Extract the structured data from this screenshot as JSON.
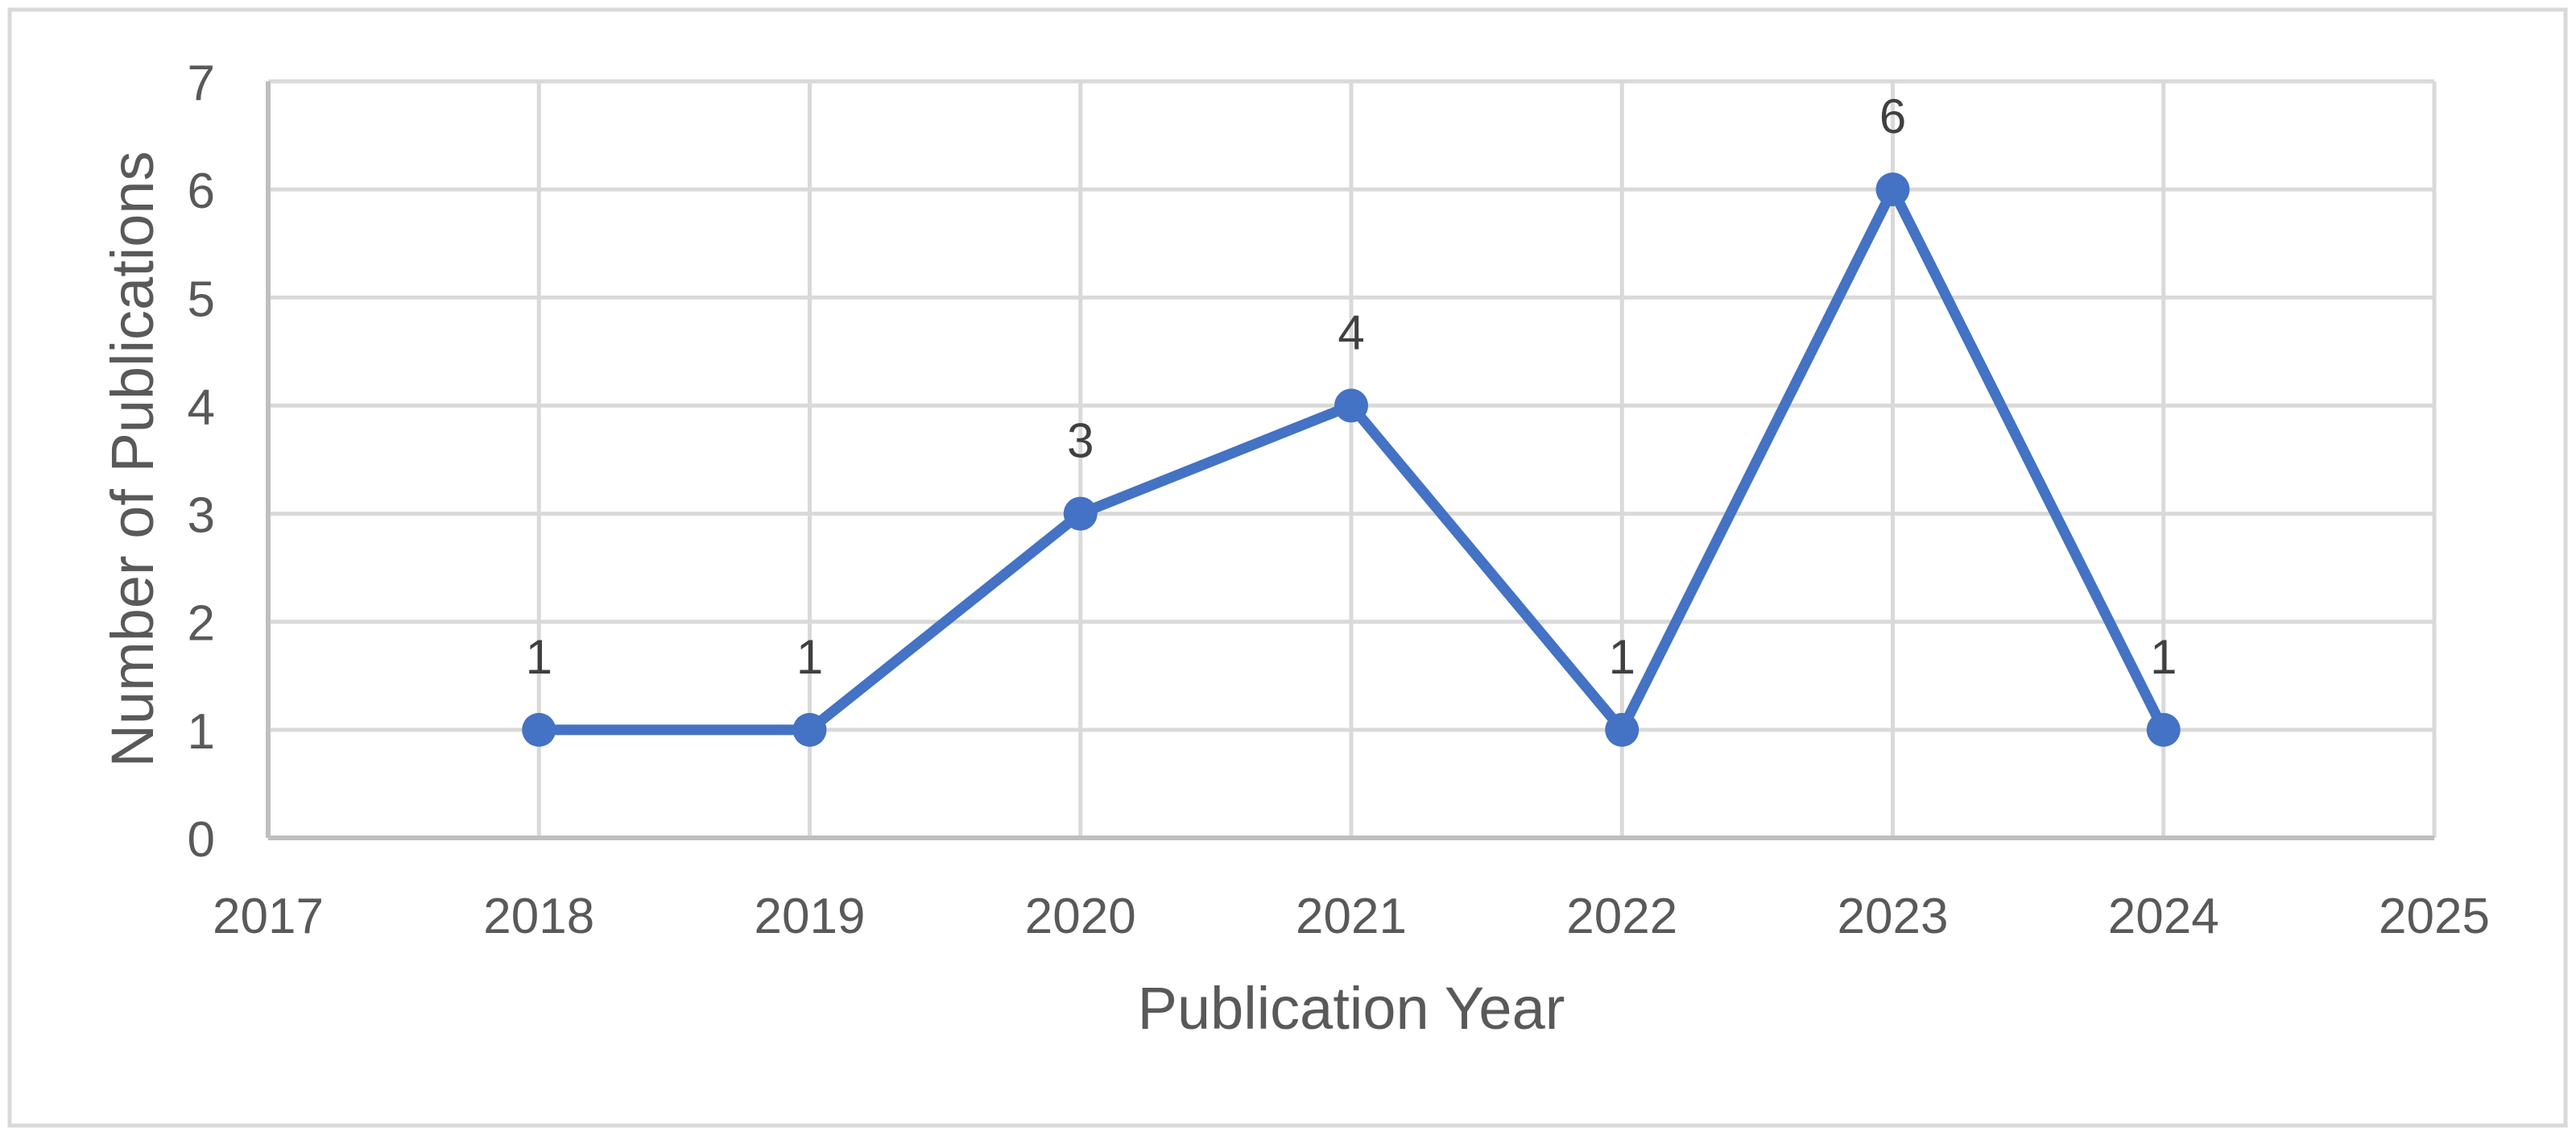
{
  "figure": {
    "background": "#FFFFFF",
    "border_color": "#D9D9D9"
  },
  "chart_data": {
    "type": "line",
    "title": "",
    "xlabel": "Publication Year",
    "ylabel": "Number of Publications",
    "x": [
      2018,
      2019,
      2020,
      2021,
      2022,
      2023,
      2024
    ],
    "values": [
      1,
      1,
      3,
      4,
      1,
      6,
      1
    ],
    "point_labels": [
      "1",
      "1",
      "3",
      "4",
      "1",
      "6",
      "1"
    ],
    "xlim": [
      2017,
      2025
    ],
    "ylim": [
      0,
      7
    ],
    "x_ticks": [
      2017,
      2018,
      2019,
      2020,
      2021,
      2022,
      2023,
      2024,
      2025
    ],
    "x_tick_labels": [
      "2017",
      "2018",
      "2019",
      "2020",
      "2021",
      "2022",
      "2023",
      "2024",
      "2025"
    ],
    "y_ticks": [
      0,
      1,
      2,
      3,
      4,
      5,
      6,
      7
    ],
    "y_tick_labels": [
      "0",
      "1",
      "2",
      "3",
      "4",
      "5",
      "6",
      "7"
    ],
    "grid": true,
    "legend": "none",
    "colors": {
      "line": "#4472C4",
      "marker": "#4472C4",
      "gridline": "#D9D9D9",
      "axis_line": "#BFBFBF",
      "tick_label": "#595959",
      "axis_title": "#595959",
      "data_label": "#404040"
    }
  }
}
